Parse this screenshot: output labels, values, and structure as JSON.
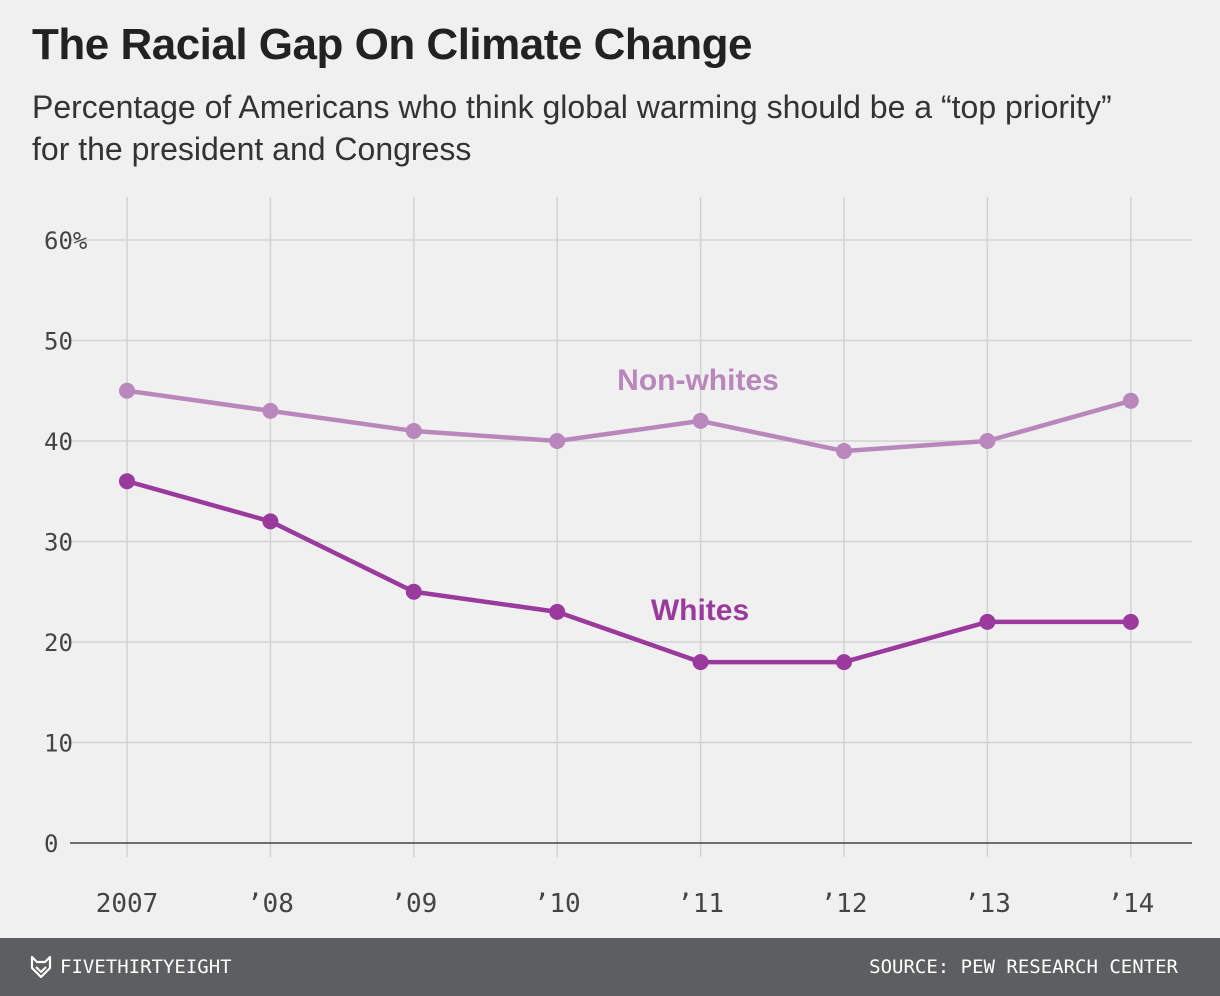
{
  "title": "The Racial Gap On Climate Change",
  "subtitle": "Percentage of Americans who think global warming should be a “top priority” for the president and Congress",
  "footer": {
    "brand": "FIVETHIRTYEIGHT",
    "brand_icon": "fox-logo-icon",
    "source": "SOURCE: PEW RESEARCH CENTER"
  },
  "chart_data": {
    "type": "line",
    "x": [
      "2007",
      "’08",
      "’09",
      "’10",
      "’11",
      "’12",
      "’13",
      "’14"
    ],
    "y_ticks": [
      "0",
      "10",
      "20",
      "30",
      "40",
      "50",
      "60%"
    ],
    "ylim": [
      0,
      60
    ],
    "grid": true,
    "series": [
      {
        "name": "Non-whites",
        "values": [
          45,
          43,
          41,
          40,
          42,
          39,
          40,
          44
        ],
        "color": "#b987bc"
      },
      {
        "name": "Whites",
        "values": [
          36,
          32,
          25,
          23,
          18,
          18,
          22,
          22
        ],
        "color": "#9a3a9c"
      }
    ]
  }
}
